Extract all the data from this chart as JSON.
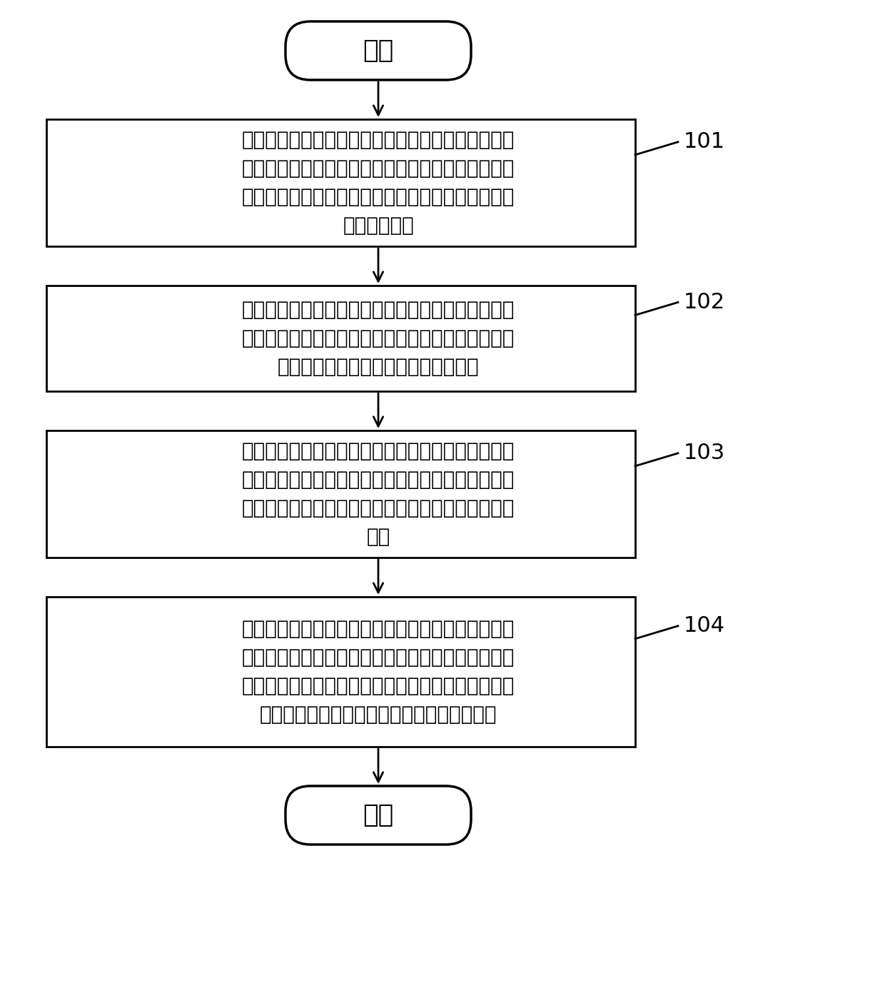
{
  "background_color": "#ffffff",
  "start_label": "开始",
  "end_label": "结束",
  "step_labels": [
    "风险评估终端根据颏内影像数据建立包括载硖动脉和\n载硖动脉上的动脉硖的三维模型，该三维模型包括与\n载硖动脉相匹配的虚拟载硖动脉以及与动脉硖相匹配\n的虚拟动脉硖",
    "风险评估终端基于上述三维模型确定目标形态学参数\n，该目标形态学参数包括上述虚拟载硖动脉的形态学\n参数以及上述虚拟动脉硖的形态学参数",
    "风险评估终端基于上述三维模型确定目标血流动力学\n参数，该目标血流动力学参数包括上述虚拟载硖动脉\n的血流动力学参数以及上述虚拟动脉硖的血流动力学\n参数",
    "风险评估终端基于预先训练好的机器学习模型对上述\n目标形态学参数、上述目标血流动力学参数以及目标\n临床参数进行运算，得到上述虚拟动脉硖的评估结果\n，该评估结果用于评估所述动脉硖的破裂风险"
  ],
  "step_numbers": [
    "101",
    "102",
    "103",
    "104"
  ],
  "text_color": "#000000",
  "box_edge_color": "#000000",
  "arrow_color": "#000000"
}
